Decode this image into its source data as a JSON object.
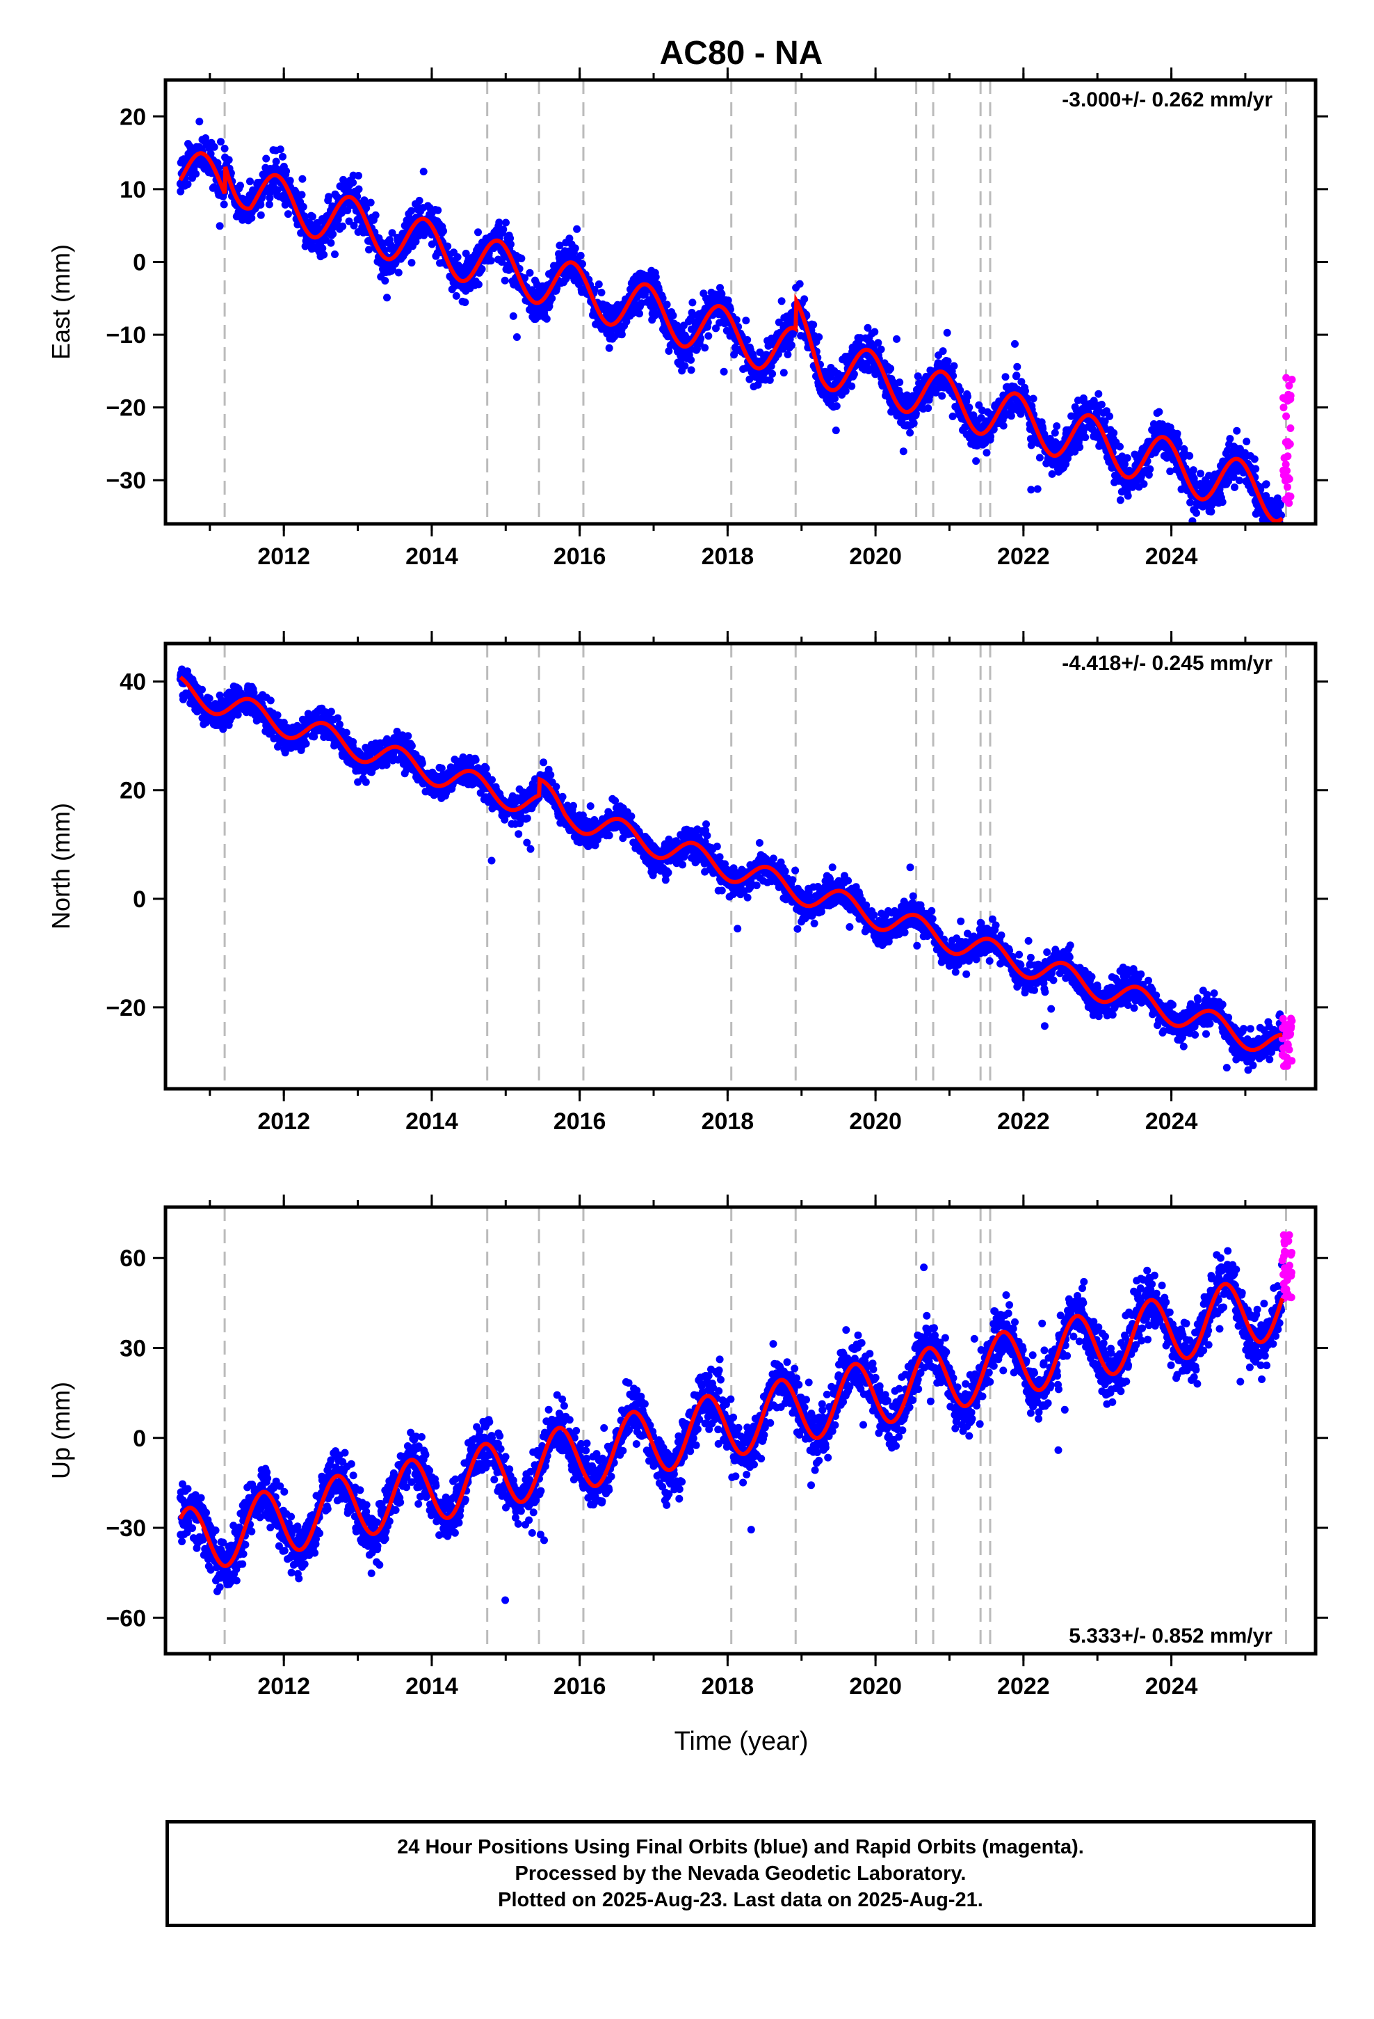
{
  "title": "AC80 - NA",
  "xlabel": "Time (year)",
  "colors": {
    "final_orbits": "#0000ff",
    "rapid_orbits": "#ff00ff",
    "model": "#ff0000",
    "event_lines": "#bbbbbb"
  },
  "event_lines": [
    2011.2,
    2014.75,
    2015.45,
    2016.05,
    2018.05,
    2018.92,
    2020.55,
    2020.78,
    2021.42,
    2021.55,
    2025.55
  ],
  "chart_data": [
    {
      "type": "scatter",
      "component": "East",
      "ylabel": "East (mm)",
      "rate_label": "-3.000+/- 0.262 mm/yr",
      "rate_position": "top-right",
      "xlim": [
        2010.4,
        2025.95
      ],
      "ylim": [
        -36,
        25
      ],
      "x_ticks": [
        "2012",
        "2014",
        "2016",
        "2018",
        "2020",
        "2022",
        "2024"
      ],
      "y_ticks": [
        "20",
        "10",
        "0",
        "−10",
        "−20",
        "−30"
      ],
      "y_tick_values": [
        20,
        10,
        0,
        -10,
        -20,
        -30
      ],
      "start_year": 2010.6,
      "end_year": 2025.5,
      "trend_start": 12.3,
      "rate_mm_per_yr": -3.0,
      "seasonal_amplitude": 3.5,
      "seasonal_peak_phase": 0.9,
      "scatter_sigma": 1.4,
      "offsets": [
        {
          "year": 2011.2,
          "step": 4
        },
        {
          "year": 2018.92,
          "step": 4
        }
      ],
      "series": [
        {
          "name": "Final Orbits",
          "color": "#0000ff"
        },
        {
          "name": "Rapid Orbits",
          "color": "#ff00ff",
          "x_range": [
            2025.5,
            2025.63
          ],
          "y_range": [
            -34,
            -15
          ]
        }
      ]
    },
    {
      "type": "scatter",
      "component": "North",
      "ylabel": "North (mm)",
      "rate_label": "-4.418+/- 0.245 mm/yr",
      "rate_position": "top-right",
      "xlim": [
        2010.4,
        2025.95
      ],
      "ylim": [
        -35,
        47
      ],
      "x_ticks": [
        "2012",
        "2014",
        "2016",
        "2018",
        "2020",
        "2022",
        "2024"
      ],
      "y_ticks": [
        "40",
        "20",
        "0",
        "−20"
      ],
      "y_tick_values": [
        40,
        20,
        0,
        -20
      ],
      "start_year": 2010.6,
      "end_year": 2025.5,
      "trend_start": 38.5,
      "rate_mm_per_yr": -4.418,
      "seasonal_amplitude": 2.4,
      "seasonal_peak_phase": 0.55,
      "scatter_sigma": 1.4,
      "offsets": [
        {
          "year": 2015.45,
          "step": 3
        }
      ],
      "series": [
        {
          "name": "Final Orbits",
          "color": "#0000ff"
        },
        {
          "name": "Rapid Orbits",
          "color": "#ff00ff",
          "x_range": [
            2025.5,
            2025.63
          ],
          "y_range": [
            -31,
            -22
          ]
        }
      ]
    },
    {
      "type": "scatter",
      "component": "Up",
      "ylabel": "Up (mm)",
      "rate_label": "5.333+/- 0.852 mm/yr",
      "rate_position": "bottom-right",
      "xlim": [
        2010.4,
        2025.95
      ],
      "ylim": [
        -72,
        77
      ],
      "x_ticks": [
        "2012",
        "2014",
        "2016",
        "2018",
        "2020",
        "2022",
        "2024"
      ],
      "y_ticks": [
        "60",
        "30",
        "0",
        "−30",
        "−60"
      ],
      "y_tick_values": [
        60,
        30,
        0,
        -30,
        -60
      ],
      "start_year": 2010.6,
      "end_year": 2025.5,
      "trend_start": -35,
      "rate_mm_per_yr": 5.333,
      "seasonal_amplitude": 11,
      "seasonal_peak_phase": 0.72,
      "scatter_sigma": 4.5,
      "offsets": [],
      "series": [
        {
          "name": "Final Orbits",
          "color": "#0000ff"
        },
        {
          "name": "Rapid Orbits",
          "color": "#ff00ff",
          "x_range": [
            2025.5,
            2025.63
          ],
          "y_range": [
            45,
            68
          ]
        }
      ]
    }
  ],
  "caption": {
    "line1": "24 Hour Positions Using Final Orbits (blue) and Rapid Orbits (magenta).",
    "line2": "Processed by the Nevada Geodetic Laboratory.",
    "line3": "Plotted on 2025-Aug-23. Last data on 2025-Aug-21."
  }
}
